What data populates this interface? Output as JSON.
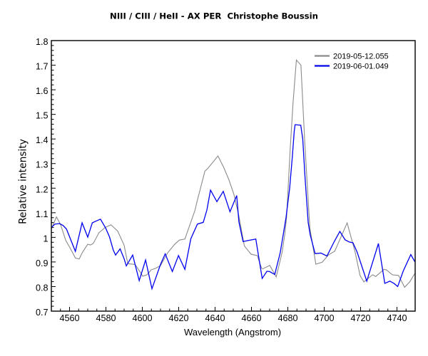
{
  "chart_data": {
    "type": "line",
    "title": "NIII / CIII / HeII - AX PER  Christophe Boussin",
    "xlabel": "Wavelength (Angstrom)",
    "ylabel": "Relative intensity",
    "xlim": [
      4550,
      4750
    ],
    "ylim": [
      0.7,
      1.8
    ],
    "x_major_tick_step": 20,
    "x_minor_tick_step": 5,
    "x_tick_labels": [
      "4560",
      "4580",
      "4600",
      "4620",
      "4640",
      "4660",
      "4680",
      "4700",
      "4720",
      "4740"
    ],
    "y_major_tick_step": 0.1,
    "y_minor_tick_step": 0.02,
    "y_tick_labels": [
      "1.8",
      "1.7",
      "1.6",
      "1.5",
      "1.4",
      "1.3",
      "1.2",
      "1.1",
      "1",
      "0.9",
      "0.8",
      "0.7"
    ],
    "grid": false,
    "legend_position": "top-right-inside",
    "axis_color": "#000000",
    "background_color": "#ffffff",
    "series": [
      {
        "name": "2019-05-12.055",
        "color": "#8a8a8a",
        "points": [
          [
            4550,
            1.034
          ],
          [
            4552.8,
            1.083
          ],
          [
            4555,
            1.053
          ],
          [
            4558,
            0.986
          ],
          [
            4560,
            0.961
          ],
          [
            4563.2,
            0.916
          ],
          [
            4565.3,
            0.912
          ],
          [
            4567,
            0.938
          ],
          [
            4570,
            0.972
          ],
          [
            4571.5,
            0.969
          ],
          [
            4573,
            0.975
          ],
          [
            4576.2,
            1.019
          ],
          [
            4579.5,
            1.04
          ],
          [
            4582.8,
            1.051
          ],
          [
            4586.5,
            1.025
          ],
          [
            4590,
            0.968
          ],
          [
            4592,
            0.893
          ],
          [
            4594.7,
            0.891
          ],
          [
            4596,
            0.89
          ],
          [
            4598.3,
            0.865
          ],
          [
            4600.2,
            0.842
          ],
          [
            4602.6,
            0.848
          ],
          [
            4604.9,
            0.868
          ],
          [
            4607.3,
            0.874
          ],
          [
            4610,
            0.885
          ],
          [
            4613.9,
            0.937
          ],
          [
            4617.8,
            0.972
          ],
          [
            4620.4,
            0.989
          ],
          [
            4623.4,
            0.993
          ],
          [
            4629,
            1.111
          ],
          [
            4630,
            1.143
          ],
          [
            4634.4,
            1.269
          ],
          [
            4636.1,
            1.281
          ],
          [
            4641.6,
            1.331
          ],
          [
            4644.7,
            1.285
          ],
          [
            4647.5,
            1.236
          ],
          [
            4650.3,
            1.176
          ],
          [
            4653,
            1.09
          ],
          [
            4656.1,
            0.965
          ],
          [
            4659.4,
            0.935
          ],
          [
            4660,
            0.931
          ],
          [
            4663.2,
            0.926
          ],
          [
            4665.6,
            0.874
          ],
          [
            4666.2,
            0.872
          ],
          [
            4670.1,
            0.886
          ],
          [
            4673.6,
            0.839
          ],
          [
            4676.8,
            0.937
          ],
          [
            4678.3,
            1.011
          ],
          [
            4679.3,
            1.08
          ],
          [
            4680.3,
            1.22
          ],
          [
            4681.3,
            1.36
          ],
          [
            4682.9,
            1.55
          ],
          [
            4684.7,
            1.721
          ],
          [
            4687.2,
            1.7
          ],
          [
            4689.3,
            1.386
          ],
          [
            4692.1,
            1.039
          ],
          [
            4695.4,
            0.891
          ],
          [
            4698.9,
            0.899
          ],
          [
            4702.4,
            0.929
          ],
          [
            4705.8,
            0.944
          ],
          [
            4712.6,
            1.059
          ],
          [
            4717,
            0.94
          ],
          [
            4719.7,
            0.845
          ],
          [
            4721.8,
            0.819
          ],
          [
            4726.6,
            0.848
          ],
          [
            4728.3,
            0.841
          ],
          [
            4732.9,
            0.87
          ],
          [
            4734.2,
            0.868
          ],
          [
            4737.4,
            0.848
          ],
          [
            4740.9,
            0.845
          ],
          [
            4744.2,
            0.797
          ],
          [
            4747,
            0.819
          ],
          [
            4750,
            0.855
          ]
        ]
      },
      {
        "name": "2019-06-01.049",
        "color": "#0000ee",
        "points": [
          [
            4550,
            1.04
          ],
          [
            4552,
            1.054
          ],
          [
            4554.5,
            1.056
          ],
          [
            4556.5,
            1.048
          ],
          [
            4558.3,
            1.034
          ],
          [
            4563.2,
            0.943
          ],
          [
            4566.9,
            1.059
          ],
          [
            4570,
            1.001
          ],
          [
            4572.5,
            1.059
          ],
          [
            4574.5,
            1.066
          ],
          [
            4577,
            1.074
          ],
          [
            4579.9,
            1.037
          ],
          [
            4582,
            1.001
          ],
          [
            4584,
            0.949
          ],
          [
            4585.3,
            0.928
          ],
          [
            4587.8,
            0.953
          ],
          [
            4590,
            0.913
          ],
          [
            4591.2,
            0.884
          ],
          [
            4594.7,
            0.928
          ],
          [
            4598.3,
            0.824
          ],
          [
            4601.8,
            0.908
          ],
          [
            4605.3,
            0.791
          ],
          [
            4610,
            0.89
          ],
          [
            4612.6,
            0.933
          ],
          [
            4616.5,
            0.861
          ],
          [
            4619.9,
            0.926
          ],
          [
            4623.4,
            0.87
          ],
          [
            4626.7,
            0.995
          ],
          [
            4630.3,
            1.054
          ],
          [
            4633.5,
            1.061
          ],
          [
            4635.5,
            1.111
          ],
          [
            4637.5,
            1.192
          ],
          [
            4641,
            1.145
          ],
          [
            4644.5,
            1.187
          ],
          [
            4648.2,
            1.104
          ],
          [
            4651.9,
            1.17
          ],
          [
            4653.1,
            1.063
          ],
          [
            4655.4,
            0.983
          ],
          [
            4658,
            0.987
          ],
          [
            4662.4,
            0.993
          ],
          [
            4665.9,
            0.833
          ],
          [
            4668.5,
            0.862
          ],
          [
            4670,
            0.861
          ],
          [
            4672.8,
            0.849
          ],
          [
            4675.8,
            0.937
          ],
          [
            4677,
            0.99
          ],
          [
            4679,
            1.08
          ],
          [
            4681,
            1.2
          ],
          [
            4682.5,
            1.33
          ],
          [
            4683.5,
            1.43
          ],
          [
            4684,
            1.458
          ],
          [
            4687.1,
            1.456
          ],
          [
            4688.2,
            1.4
          ],
          [
            4689.4,
            1.25
          ],
          [
            4691.2,
            1.06
          ],
          [
            4692.3,
            1.01
          ],
          [
            4695,
            0.934
          ],
          [
            4698.2,
            0.936
          ],
          [
            4701.5,
            0.924
          ],
          [
            4705.6,
            0.984
          ],
          [
            4708.6,
            1.024
          ],
          [
            4711.5,
            0.99
          ],
          [
            4713.8,
            0.981
          ],
          [
            4715.8,
            0.978
          ],
          [
            4718.1,
            0.94
          ],
          [
            4723.4,
            0.822
          ],
          [
            4729.8,
            0.975
          ],
          [
            4733.3,
            0.813
          ],
          [
            4736.1,
            0.822
          ],
          [
            4738.3,
            0.813
          ],
          [
            4740.4,
            0.8
          ],
          [
            4743.5,
            0.864
          ],
          [
            4747.6,
            0.93
          ],
          [
            4750,
            0.899
          ]
        ]
      }
    ]
  }
}
